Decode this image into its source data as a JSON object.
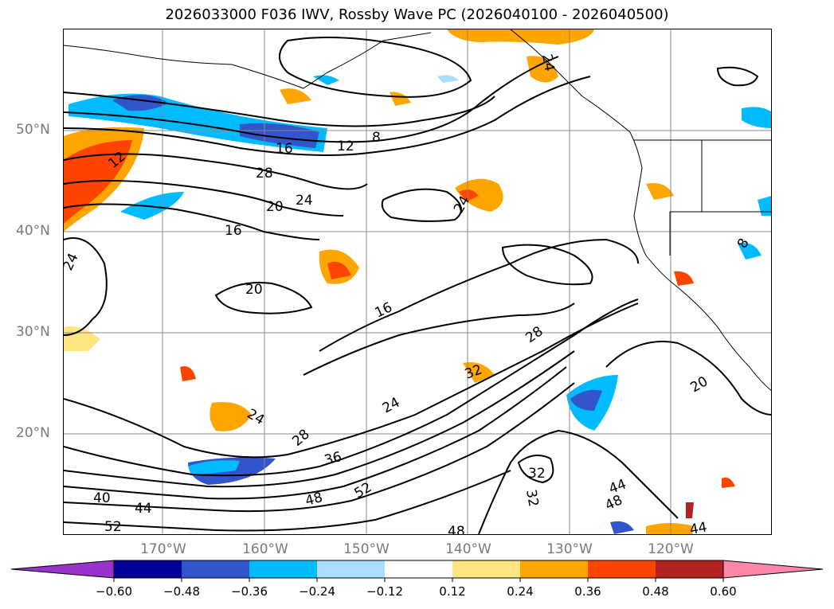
{
  "title": "2026033000 F036 IWV, Rossby Wave PC (2026040100 - 2026040500)",
  "latitude_labels": [
    "50°N",
    "40°N",
    "30°N",
    "20°N"
  ],
  "longitude_labels": [
    "170°W",
    "160°W",
    "150°W",
    "140°W",
    "130°W",
    "120°W"
  ],
  "contour_labels": [
    "8",
    "12",
    "16",
    "28",
    "24",
    "20",
    "16",
    "12",
    "24",
    "20",
    "16",
    "24",
    "28",
    "32",
    "24",
    "36",
    "40",
    "44",
    "48",
    "52",
    "52",
    "48",
    "32",
    "32",
    "44",
    "48",
    "44",
    "20",
    "8",
    "24",
    "28",
    "24"
  ],
  "colorbar": {
    "tick_labels": [
      "−0.60",
      "−0.48",
      "−0.36",
      "−0.24",
      "−0.12",
      "0.12",
      "0.24",
      "0.36",
      "0.48",
      "0.60"
    ],
    "colors": [
      "#9933cc",
      "#000099",
      "#3355cc",
      "#00bbff",
      "#aaddff",
      "#ffffff",
      "#ffe680",
      "#ffa500",
      "#ff4400",
      "#b22222",
      "#ff88aa"
    ]
  }
}
